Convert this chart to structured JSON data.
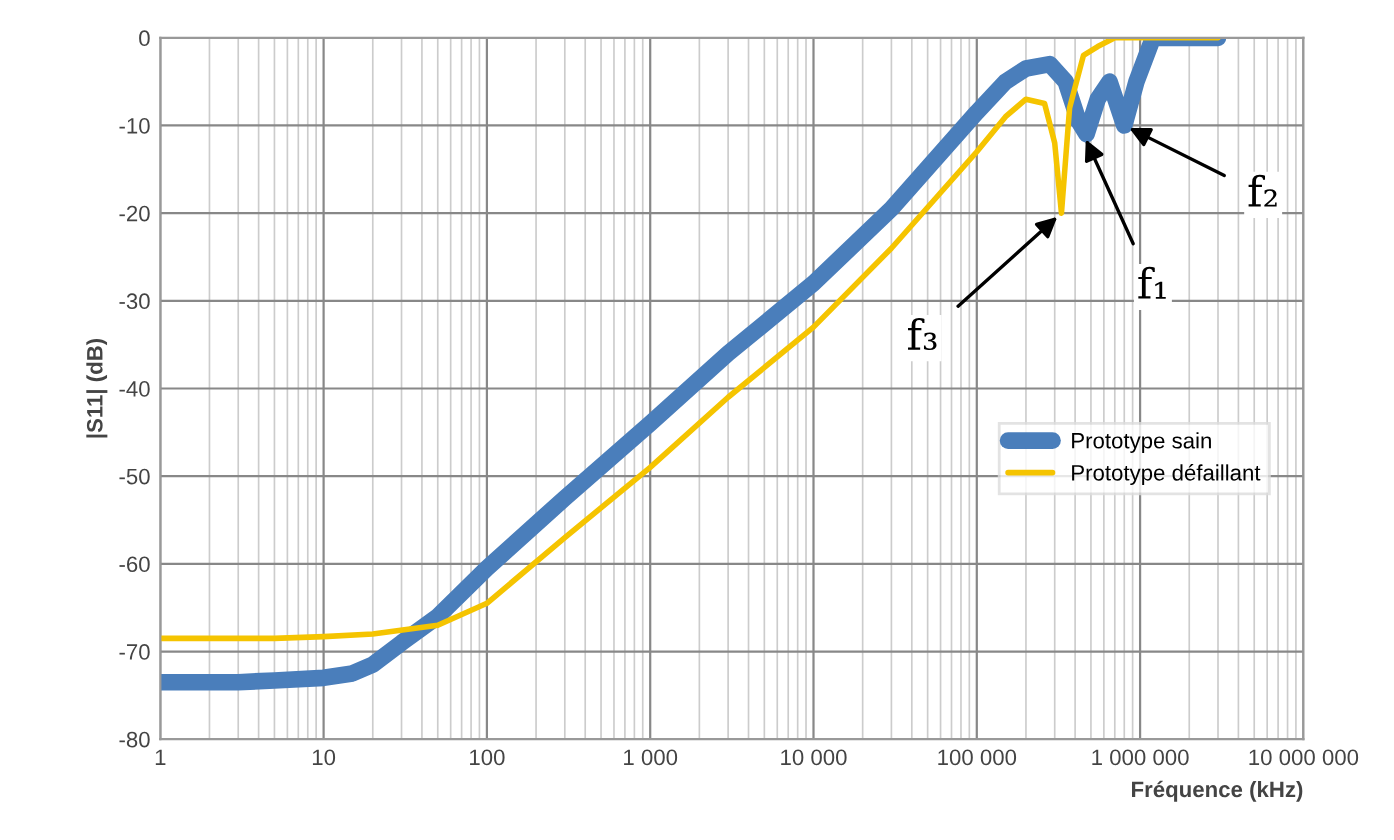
{
  "chart_data": {
    "type": "line",
    "xlabel": "Fréquence (kHz)",
    "ylabel": "|S11| (dB)",
    "log": "x",
    "xlim": [
      1,
      10000000
    ],
    "xticks": [
      1,
      10,
      100,
      {
        "value": 1000,
        "label": "1 000"
      },
      {
        "value": 10000,
        "label": "10 000"
      },
      {
        "value": 100000,
        "label": "100 000"
      },
      {
        "value": 1000000,
        "label": "1 000 000"
      },
      {
        "value": 10000000,
        "label": "10 000 000"
      }
    ],
    "ylim": [
      -80,
      0
    ],
    "yticks": [
      -80,
      -70,
      -60,
      -50,
      -40,
      -30,
      -20,
      -10,
      0
    ],
    "grid": true,
    "legend": "right",
    "series": [
      {
        "name": "Prototype sain",
        "color": "#4a7ebb",
        "x": [
          1,
          3,
          5,
          10,
          15,
          20,
          30,
          50,
          100,
          300,
          1000,
          3000,
          10000,
          30000,
          100000,
          150000,
          200000,
          280000,
          350000,
          420000,
          470000,
          550000,
          650000,
          800000,
          950000,
          1200000,
          2000000,
          3000000
        ],
        "values": [
          -73.5,
          -73.5,
          -73.3,
          -73,
          -72.5,
          -71.5,
          -69,
          -66,
          -60.5,
          -52.5,
          -44,
          -36,
          -28,
          -19.5,
          -8.5,
          -5,
          -3.5,
          -3,
          -5,
          -9.5,
          -11,
          -7,
          -5,
          -10,
          -5,
          0,
          0,
          0
        ]
      },
      {
        "name": "Prototype défaillant",
        "color": "#f5c400",
        "x": [
          1,
          5,
          10,
          20,
          50,
          100,
          300,
          1000,
          3000,
          10000,
          30000,
          100000,
          150000,
          200000,
          260000,
          300000,
          330000,
          370000,
          450000,
          550000,
          700000,
          1000000,
          3000000
        ],
        "values": [
          -68.5,
          -68.5,
          -68.3,
          -68,
          -67,
          -64.5,
          -57,
          -49,
          -41,
          -33,
          -24,
          -13,
          -9,
          -7,
          -7.5,
          -12,
          -20,
          -8,
          -2,
          -1,
          0,
          0,
          0
        ]
      }
    ],
    "annotations": [
      {
        "text": "f₁",
        "x": 450000,
        "y": -11
      },
      {
        "text": "f₂",
        "x": 800000,
        "y": -10
      },
      {
        "text": "f₃",
        "x": 330000,
        "y": -20
      }
    ]
  }
}
